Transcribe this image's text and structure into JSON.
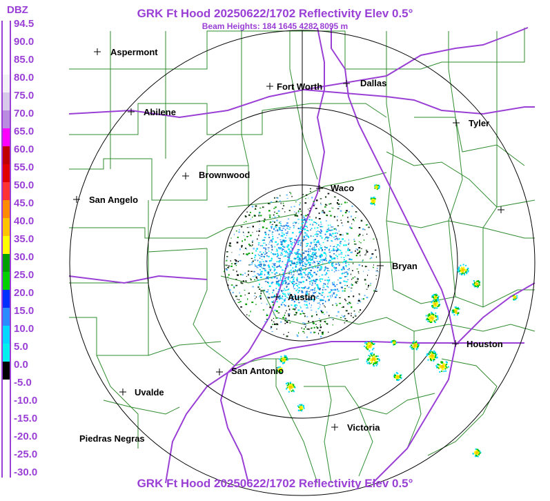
{
  "header": {
    "title": "GRK Ft Hood 20250622/1702 Reflectivity Elev 0.5°",
    "subtitle": "Beam Heights: 184 1645 4282 8095 m",
    "footer_title": "GRK Ft Hood 20250622/1702 Reflectivity Elev 0.5°"
  },
  "legend": {
    "unit": "DBZ",
    "labels": [
      "94.5",
      "90.0",
      "85.0",
      "80.0",
      "75.0",
      "70.0",
      "65.0",
      "60.0",
      "55.0",
      "50.0",
      "45.0",
      "40.0",
      "35.0",
      "30.0",
      "25.0",
      "20.0",
      "15.0",
      "10.0",
      "5.0",
      "0.0",
      "-5.0",
      "-10.0",
      "-15.0",
      "-20.0",
      "-25.0",
      "-30.0"
    ],
    "bands": [
      {
        "color": "#ffffff"
      },
      {
        "color": "#ffffff"
      },
      {
        "color": "#ffffff"
      },
      {
        "color": "#f2f2f7"
      },
      {
        "color": "#d7c9ea"
      },
      {
        "color": "#b98ce0"
      },
      {
        "color": "#ff00ff"
      },
      {
        "color": "#c00000"
      },
      {
        "color": "#e00000"
      },
      {
        "color": "#ff3333"
      },
      {
        "color": "#ff8c00"
      },
      {
        "color": "#ffc400"
      },
      {
        "color": "#ffff00"
      },
      {
        "color": "#00a000"
      },
      {
        "color": "#00d000"
      },
      {
        "color": "#0030ff"
      },
      {
        "color": "#2a8cff"
      },
      {
        "color": "#00d8ff"
      },
      {
        "color": "#00f0f0"
      },
      {
        "color": "#000000"
      },
      {
        "color": "#ffffff"
      },
      {
        "color": "#ffffff"
      },
      {
        "color": "#ffffff"
      },
      {
        "color": "#ffffff"
      },
      {
        "color": "#ffffff"
      },
      {
        "color": "#ffffff"
      }
    ]
  },
  "map": {
    "radar_site": "GRK",
    "cities": [
      {
        "name": "Aspermont"
      },
      {
        "name": "Fort Worth"
      },
      {
        "name": "Dallas"
      },
      {
        "name": "Abilene"
      },
      {
        "name": "Tyler"
      },
      {
        "name": "Brownwood"
      },
      {
        "name": "Waco"
      },
      {
        "name": "San Angelo"
      },
      {
        "name": "Bryan"
      },
      {
        "name": "Austin"
      },
      {
        "name": "Houston"
      },
      {
        "name": "San Antonio"
      },
      {
        "name": "Uvalde"
      },
      {
        "name": "Victoria"
      },
      {
        "name": "Piedras Negras"
      },
      {
        "name": ""
      }
    ],
    "colors": {
      "county_lines": "#2e8b2e",
      "highways": "#9a3fd6",
      "range_rings": "#000000",
      "title": "#9a3fd6"
    }
  }
}
